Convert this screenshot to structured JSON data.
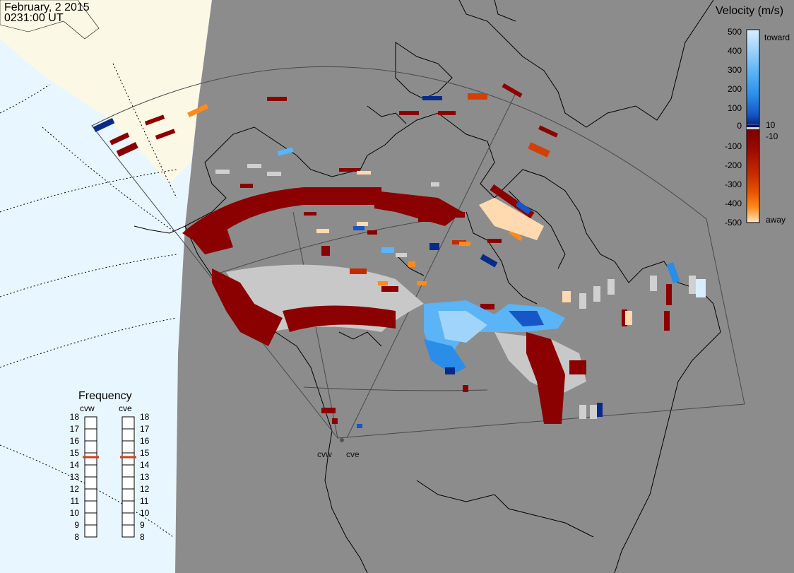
{
  "header": {
    "date": "February, 2 2015",
    "time": "0231:00 UT"
  },
  "radars": [
    {
      "code": "cvw"
    },
    {
      "code": "cve"
    }
  ],
  "velocity_scale": {
    "title": "Velocity (m/s)",
    "toward_label": "toward",
    "away_label": "away",
    "ticks": [
      "500",
      "400",
      "300",
      "200",
      "100",
      "10",
      "0",
      "-10",
      "-100",
      "-200",
      "-300",
      "-400",
      "-500"
    ],
    "colors": [
      "#d8eefe",
      "#a0d4fa",
      "#5ab4f5",
      "#2a8de8",
      "#1656c6",
      "#082b8a",
      "#0a0a5e",
      "#d0d0d0",
      "#7a0000",
      "#9c0a00",
      "#c62800",
      "#e55300",
      "#ff8a1a",
      "#ffbc6a",
      "#ffe4c4"
    ]
  },
  "frequency_panel": {
    "title": "Frequency",
    "left_label": "cvw",
    "right_label": "cve",
    "ticks": [
      "18",
      "17",
      "16",
      "15",
      "14",
      "13",
      "12",
      "11",
      "10",
      "9",
      "8"
    ],
    "cvw_value": 15,
    "cve_value": 15,
    "marker_color": "#d2401a"
  },
  "colors": {
    "ocean": "#e8f6ff",
    "land_light": "#fcf8e6",
    "land_gray": "#8c8c8c",
    "ground_scatter": "#c8c8c8"
  }
}
